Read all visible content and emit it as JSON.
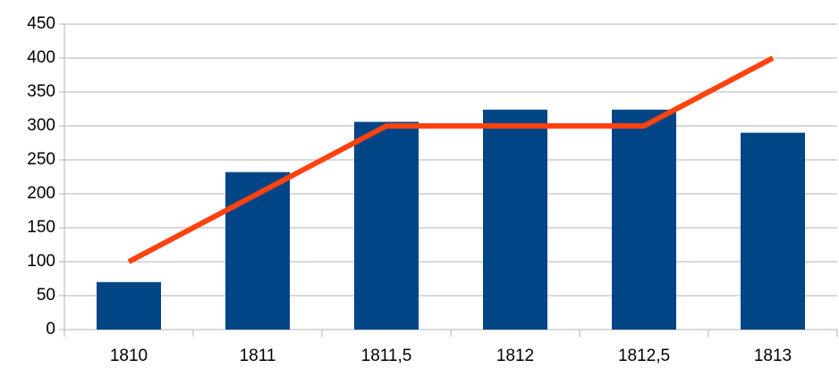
{
  "chart_data": {
    "type": "bar",
    "categories": [
      "1810",
      "1811",
      "1811,5",
      "1812",
      "1812,5",
      "1813"
    ],
    "series": [
      {
        "type": "bar",
        "color": "#004586",
        "values": [
          70,
          232,
          306,
          324,
          324,
          290
        ]
      },
      {
        "type": "line",
        "color": "#ff420e",
        "values": [
          100,
          200,
          300,
          300,
          300,
          400
        ]
      }
    ],
    "ylim": [
      0,
      450
    ],
    "yticks": [
      0,
      50,
      100,
      150,
      200,
      250,
      300,
      350,
      400,
      450
    ],
    "grid": true
  }
}
